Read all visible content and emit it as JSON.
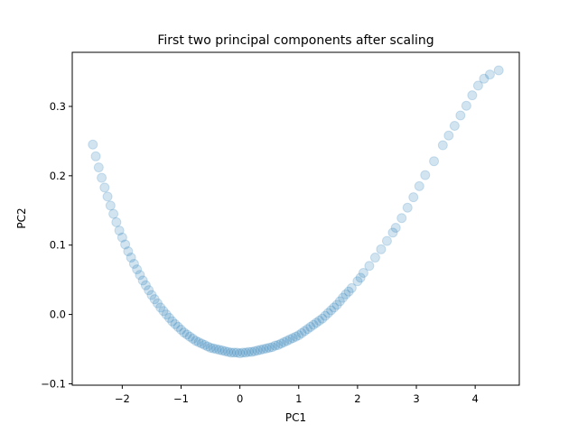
{
  "chart_data": {
    "type": "scatter",
    "title": "First two principal components after scaling",
    "xlabel": "PC1",
    "ylabel": "PC2",
    "xlim": [
      -2.85,
      4.75
    ],
    "ylim": [
      -0.102,
      0.378
    ],
    "xticks": [
      -2,
      -1,
      0,
      1,
      2,
      3,
      4
    ],
    "yticks": [
      -0.1,
      0.0,
      0.1,
      0.2,
      0.3
    ],
    "ytick_labels": [
      "−0.1",
      "0.0",
      "0.1",
      "0.2",
      "0.3"
    ],
    "xtick_labels": [
      "−2",
      "−1",
      "0",
      "1",
      "2",
      "3",
      "4"
    ],
    "grid": false,
    "marker_color": "#1f77b4",
    "marker_alpha": 0.2,
    "series": [
      {
        "x": [
          -2.5,
          -2.45,
          -2.4,
          -2.35,
          -2.3,
          -2.25,
          -2.2,
          -2.15,
          -2.1,
          -2.05,
          -2.0,
          -1.95,
          -1.9,
          -1.85,
          -1.8,
          -1.75,
          -1.7,
          -1.65,
          -1.6,
          -1.55,
          -1.5,
          -1.45,
          -1.4,
          -1.35,
          -1.3,
          -1.25,
          -1.2,
          -1.15,
          -1.1,
          -1.05,
          -1.0,
          -0.95,
          -0.9,
          -0.85,
          -0.8,
          -0.75,
          -0.7,
          -0.65,
          -0.6,
          -0.55,
          -0.5,
          -0.45,
          -0.4,
          -0.35,
          -0.3,
          -0.25,
          -0.2,
          -0.15,
          -0.1,
          -0.05,
          0.0,
          0.05,
          0.1,
          0.15,
          0.2,
          0.25,
          0.3,
          0.35,
          0.4,
          0.45,
          0.5,
          0.55,
          0.6,
          0.65,
          0.7,
          0.75,
          0.8,
          0.85,
          0.9,
          0.95,
          1.0,
          1.05,
          1.1,
          1.15,
          1.2,
          1.25,
          1.3,
          1.35,
          1.4,
          1.45,
          1.5,
          1.55,
          1.6,
          1.65,
          1.7,
          1.75,
          1.8,
          1.85,
          1.9,
          2.0,
          2.05,
          2.1,
          2.2,
          2.3,
          2.4,
          2.5,
          2.6,
          2.65,
          2.75,
          2.85,
          2.95,
          3.05,
          3.15,
          3.3,
          3.45,
          3.55,
          3.65,
          3.75,
          3.85,
          3.95,
          4.05,
          4.15,
          4.25,
          4.4
        ],
        "y": [
          0.245,
          0.228,
          0.212,
          0.197,
          0.183,
          0.17,
          0.157,
          0.145,
          0.133,
          0.121,
          0.111,
          0.101,
          0.091,
          0.082,
          0.073,
          0.065,
          0.057,
          0.049,
          0.042,
          0.035,
          0.028,
          0.022,
          0.016,
          0.01,
          0.005,
          0.0,
          -0.005,
          -0.01,
          -0.014,
          -0.018,
          -0.022,
          -0.026,
          -0.029,
          -0.032,
          -0.035,
          -0.038,
          -0.04,
          -0.042,
          -0.044,
          -0.046,
          -0.048,
          -0.049,
          -0.05,
          -0.051,
          -0.052,
          -0.053,
          -0.054,
          -0.055,
          -0.055,
          -0.055,
          -0.056,
          -0.055,
          -0.055,
          -0.054,
          -0.054,
          -0.053,
          -0.052,
          -0.051,
          -0.05,
          -0.049,
          -0.048,
          -0.047,
          -0.045,
          -0.044,
          -0.042,
          -0.04,
          -0.038,
          -0.036,
          -0.034,
          -0.032,
          -0.03,
          -0.027,
          -0.024,
          -0.021,
          -0.018,
          -0.015,
          -0.012,
          -0.009,
          -0.006,
          -0.002,
          0.002,
          0.006,
          0.01,
          0.014,
          0.019,
          0.024,
          0.029,
          0.033,
          0.038,
          0.048,
          0.053,
          0.06,
          0.07,
          0.082,
          0.094,
          0.106,
          0.118,
          0.125,
          0.139,
          0.154,
          0.169,
          0.185,
          0.201,
          0.221,
          0.244,
          0.258,
          0.272,
          0.287,
          0.301,
          0.316,
          0.33,
          0.34,
          0.346,
          0.352
        ]
      }
    ]
  }
}
